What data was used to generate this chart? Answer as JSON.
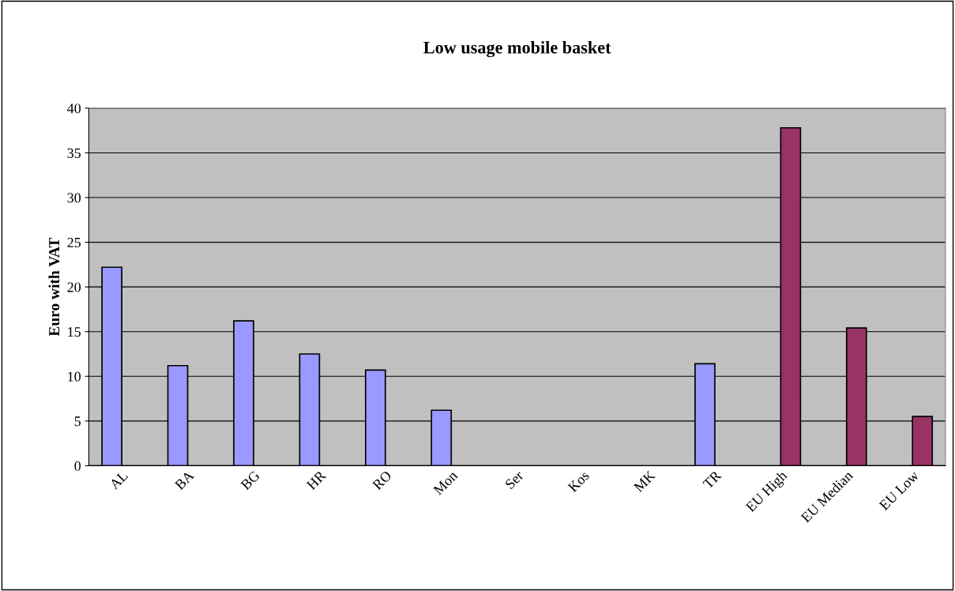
{
  "chart_data": {
    "type": "bar",
    "title": "Low usage mobile basket",
    "ylabel": "Euro with VAT",
    "categories": [
      "AL",
      "BA",
      "BG",
      "HR",
      "RO",
      "Mon",
      "Ser",
      "Kos",
      "MK",
      "TR",
      "EU High",
      "EU Median",
      "EU Low"
    ],
    "series": [
      {
        "color": "#9999ff",
        "values": [
          22.2,
          11.2,
          16.2,
          12.5,
          10.7,
          6.2,
          null,
          null,
          null,
          11.4,
          null,
          null,
          null
        ]
      },
      {
        "color": "#993366",
        "values": [
          null,
          null,
          null,
          null,
          null,
          null,
          null,
          null,
          null,
          null,
          37.8,
          15.4,
          5.5
        ]
      }
    ],
    "ylim": [
      0,
      40
    ],
    "yticks": [
      0,
      5,
      10,
      15,
      20,
      25,
      30,
      35,
      40
    ],
    "grid": "y"
  }
}
